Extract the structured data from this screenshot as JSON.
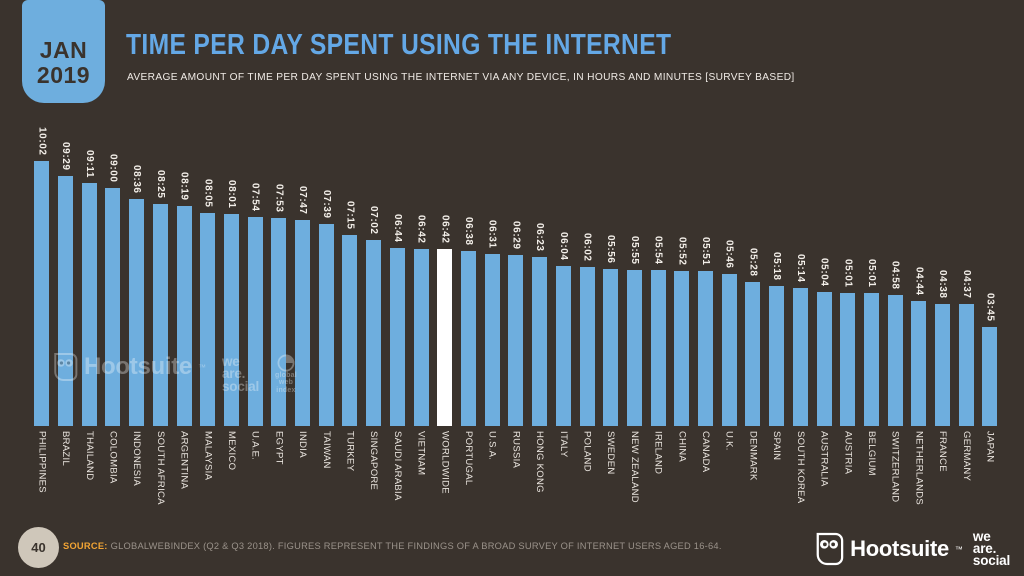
{
  "badge": {
    "month": "JAN",
    "year": "2019"
  },
  "header": {
    "title": "TIME PER DAY SPENT USING THE INTERNET",
    "subtitle": "AVERAGE AMOUNT OF TIME PER DAY SPENT USING THE INTERNET VIA ANY DEVICE, IN HOURS AND MINUTES [SURVEY BASED]"
  },
  "chart_data": {
    "type": "bar",
    "title": "TIME PER DAY SPENT USING THE INTERNET",
    "xlabel": "",
    "ylabel": "",
    "ylim_minutes": [
      0,
      602
    ],
    "legend": "none",
    "grid": false,
    "categories": [
      "PHILIPPINES",
      "BRAZIL",
      "THAILAND",
      "COLOMBIA",
      "INDONESIA",
      "SOUTH AFRICA",
      "ARGENTINA",
      "MALAYSIA",
      "MEXICO",
      "U.A.E.",
      "EGYPT",
      "INDIA",
      "TAIWAN",
      "TURKEY",
      "SINGAPORE",
      "SAUDI ARABIA",
      "VIETNAM",
      "WORLDWIDE",
      "PORTUGAL",
      "U.S.A.",
      "RUSSIA",
      "HONG KONG",
      "ITALY",
      "POLAND",
      "SWEDEN",
      "NEW ZEALAND",
      "IRELAND",
      "CHINA",
      "CANADA",
      "U.K.",
      "DENMARK",
      "SPAIN",
      "SOUTH KOREA",
      "AUSTRALIA",
      "AUSTRIA",
      "BELGIUM",
      "SWITZERLAND",
      "NETHERLANDS",
      "FRANCE",
      "GERMANY",
      "JAPAN"
    ],
    "values": [
      "10:02",
      "09:29",
      "09:11",
      "09:00",
      "08:36",
      "08:25",
      "08:19",
      "08:05",
      "08:01",
      "07:54",
      "07:53",
      "07:47",
      "07:39",
      "07:15",
      "07:02",
      "06:44",
      "06:42",
      "06:42",
      "06:38",
      "06:31",
      "06:29",
      "06:23",
      "06:04",
      "06:02",
      "05:56",
      "05:55",
      "05:54",
      "05:52",
      "05:51",
      "05:46",
      "05:28",
      "05:18",
      "05:14",
      "05:04",
      "05:01",
      "05:01",
      "04:58",
      "04:44",
      "04:38",
      "04:37",
      "03:45"
    ],
    "values_minutes": [
      602,
      569,
      551,
      540,
      516,
      505,
      499,
      485,
      481,
      474,
      473,
      467,
      459,
      435,
      422,
      404,
      402,
      402,
      398,
      391,
      389,
      383,
      364,
      362,
      356,
      355,
      354,
      352,
      351,
      346,
      328,
      318,
      314,
      304,
      301,
      301,
      298,
      284,
      278,
      277,
      225
    ],
    "highlight_category": "WORLDWIDE",
    "bar_color": "#6eaede",
    "highlight_color": "#ffffff"
  },
  "watermarks": {
    "hootsuite": "Hootsuite",
    "tm": "™",
    "wearesocial_lines": [
      "we",
      "are.",
      "social"
    ],
    "globalwebindex_lines": [
      "global",
      "web",
      "index"
    ]
  },
  "footer": {
    "page_number": "40",
    "source_label": "SOURCE:",
    "source_text": "GLOBALWEBINDEX (Q2 & Q3 2018). FIGURES REPRESENT THE FINDINGS OF A BROAD SURVEY OF INTERNET USERS AGED 16-64.",
    "hootsuite_label": "Hootsuite",
    "hootsuite_tm": "™",
    "wearesocial_lines": [
      "we",
      "are.",
      "social"
    ]
  },
  "colors": {
    "background": "#3a332d",
    "bar": "#6eaede",
    "bar_highlight": "#ffffff",
    "title_blue": "#64a8e6",
    "source_orange": "#f2a434",
    "text_light": "#f3efe9",
    "text_muted": "#9a928a",
    "page_circle": "#cfc7ba"
  }
}
